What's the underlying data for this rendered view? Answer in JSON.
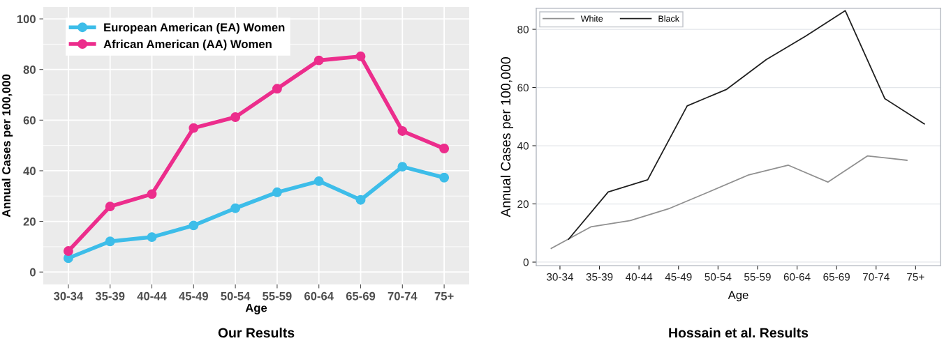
{
  "chart_data": [
    {
      "type": "line",
      "title": "Our Results",
      "xlabel": "Age",
      "ylabel": "Annual Cases per 100,000",
      "categories": [
        "30-34",
        "35-39",
        "40-44",
        "45-49",
        "50-54",
        "55-59",
        "60-64",
        "65-69",
        "70-74",
        "75+"
      ],
      "series": [
        {
          "name": "European American (EA) Women",
          "color": "#3dbde9",
          "values": [
            5.5,
            12.1,
            13.8,
            18.4,
            25.2,
            31.5,
            35.9,
            28.5,
            41.6,
            37.3
          ]
        },
        {
          "name": "African American (AA) Women",
          "color": "#ec2d8c",
          "values": [
            8.3,
            25.9,
            30.8,
            56.9,
            61.2,
            72.4,
            83.6,
            85.2,
            55.7,
            48.8
          ]
        }
      ],
      "ylim": [
        -4.9,
        104.7
      ],
      "yticks": [
        0,
        20,
        40,
        60,
        80,
        100
      ],
      "grid": true,
      "legend": "top left",
      "marker": "circle",
      "line_style": "solid"
    },
    {
      "type": "line",
      "title": "Hossain et al. Results",
      "xlabel": "Age",
      "ylabel": "Annual Cases per 100,000",
      "categories": [
        "30-34",
        "35-39",
        "40-44",
        "45-49",
        "50-54",
        "55-59",
        "60-64",
        "65-69",
        "70-74",
        "75+"
      ],
      "series": [
        {
          "name": "White",
          "color": "#909090",
          "values": [
            4.7,
            12.1,
            14.3,
            18.5,
            24.2,
            30.0,
            33.3,
            27.5,
            36.5,
            35.0
          ]
        },
        {
          "name": "Black",
          "color": "#202020",
          "values": [
            7.9,
            24.1,
            28.3,
            53.7,
            59.4,
            69.6,
            77.7,
            86.4,
            56.2,
            47.5
          ]
        }
      ],
      "ylim": [
        -1.2,
        87.2
      ],
      "yticks": [
        0,
        20,
        40,
        60,
        80
      ],
      "grid": "y",
      "legend": "top left",
      "marker": "none",
      "line_style": "solid"
    }
  ]
}
